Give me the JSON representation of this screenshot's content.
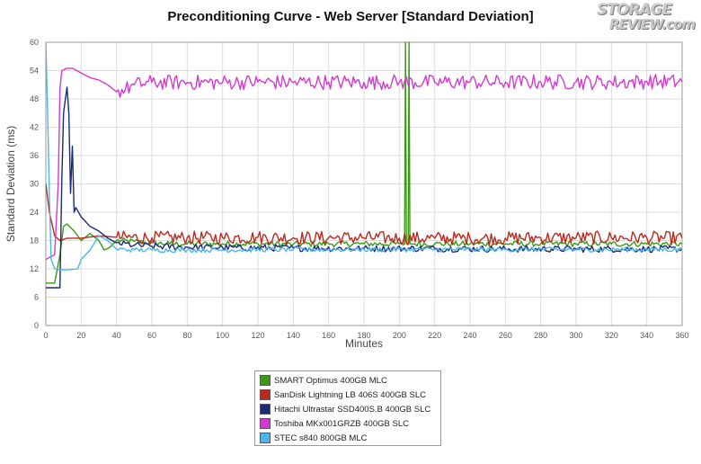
{
  "chart_data": {
    "type": "line",
    "title": "Preconditioning Curve - Web Server [Standard Deviation]",
    "xlabel": "Minutes",
    "ylabel": "Standard Deviation (ms)",
    "xlim": [
      0,
      360
    ],
    "ylim": [
      0,
      60
    ],
    "xticks": [
      0,
      20,
      40,
      60,
      80,
      100,
      120,
      140,
      160,
      180,
      200,
      220,
      240,
      260,
      280,
      300,
      320,
      340,
      360
    ],
    "yticks": [
      0,
      6,
      12,
      18,
      24,
      30,
      36,
      42,
      48,
      54,
      60
    ],
    "grid": true,
    "legend_position": "bottom",
    "series": [
      {
        "name": "SMART Optimus 400GB MLC",
        "color": "#3a9a16",
        "x": [
          0,
          5,
          8,
          10,
          12,
          16,
          20,
          25,
          30,
          33,
          36,
          40,
          50,
          60,
          70,
          80,
          100,
          120,
          140,
          160,
          180,
          200,
          203,
          203.5,
          204,
          205,
          205.5,
          206,
          207,
          220,
          240,
          260,
          280,
          300,
          320,
          340,
          360
        ],
        "y": [
          9,
          9,
          15,
          21,
          21.5,
          20,
          18,
          19.5,
          18,
          16,
          16.5,
          18,
          17.8,
          17.5,
          17.3,
          17.3,
          17.3,
          17.3,
          17.2,
          17.3,
          17.3,
          17.3,
          17.3,
          60,
          17.3,
          17.3,
          60,
          17.3,
          17.3,
          17.3,
          17.3,
          17.3,
          17.3,
          17.3,
          17.3,
          17.3,
          17.3
        ],
        "noise": 0.6
      },
      {
        "name": "SanDisk Lightning LB 406S 400GB SLC",
        "color": "#c0281e",
        "x": [
          0,
          2,
          5,
          8,
          12,
          20,
          30,
          40,
          60,
          80,
          100,
          120,
          140,
          160,
          180,
          200,
          220,
          240,
          260,
          280,
          300,
          320,
          340,
          360
        ],
        "y": [
          30,
          24,
          19,
          18,
          18.5,
          18.5,
          19,
          18.7,
          18.6,
          18.6,
          18.6,
          18.7,
          18.6,
          18.6,
          18.6,
          18.5,
          18.5,
          18.5,
          18.5,
          18.6,
          18.6,
          18.6,
          18.6,
          18.5
        ],
        "noise": 1.4
      },
      {
        "name": "Hitachi Ultrastar SSD400S.B 400GB SLC",
        "color": "#1a2a78",
        "x": [
          0,
          8,
          9,
          10,
          12,
          13,
          14,
          15,
          16,
          17,
          20,
          25,
          30,
          35,
          40,
          50,
          60,
          80,
          100,
          140,
          180,
          220,
          260,
          300,
          340,
          360
        ],
        "y": [
          8,
          8,
          30,
          45,
          50.5,
          45,
          28,
          38,
          24,
          25,
          23,
          21,
          20,
          18.5,
          17.5,
          17,
          16.8,
          16.6,
          16.5,
          16.4,
          16.3,
          16.3,
          16.2,
          16.2,
          16.2,
          16.2
        ],
        "noise": 0.7
      },
      {
        "name": "Toshiba MKx001GRZB 400GB SLC",
        "color": "#d43ad0",
        "x": [
          0,
          5,
          7,
          8,
          9,
          12,
          15,
          20,
          25,
          30,
          35,
          40,
          45,
          50,
          60,
          80,
          100,
          120,
          140,
          160,
          180,
          200,
          220,
          240,
          260,
          280,
          300,
          320,
          340,
          360
        ],
        "y": [
          14,
          15,
          30,
          50,
          54,
          54.5,
          54.5,
          53.5,
          52.5,
          52,
          51,
          49.5,
          50,
          51,
          51.5,
          51.5,
          51.5,
          51.6,
          51.5,
          51.6,
          51.5,
          51.6,
          51.5,
          51.6,
          51.5,
          51.6,
          51.6,
          51.5,
          51.7,
          51.6
        ],
        "noise": 1.6
      },
      {
        "name": "STEC s840 800GB MLC",
        "color": "#4ab6ea",
        "x": [
          0,
          1,
          2,
          3,
          5,
          8,
          12,
          18,
          20,
          25,
          30,
          35,
          40,
          50,
          60,
          80,
          100,
          140,
          180,
          220,
          260,
          300,
          340,
          360
        ],
        "y": [
          60,
          45,
          28,
          14,
          12,
          11.8,
          11.8,
          12,
          14,
          16,
          19,
          18,
          16.2,
          16,
          16,
          16,
          16,
          16.1,
          16.1,
          16.1,
          16.1,
          16.1,
          16.1,
          16.1
        ],
        "noise": 0.5
      }
    ]
  },
  "logo": {
    "line1": "STORAGE",
    "line2": "REVIEW.com"
  }
}
